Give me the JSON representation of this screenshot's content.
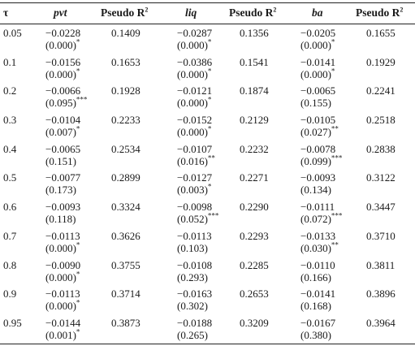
{
  "headers": {
    "tau": "τ",
    "pvt": "pvt",
    "pr1": "Pseudo R",
    "liq": "liq",
    "pr2": "Pseudo R",
    "ba": "ba",
    "pr3": "Pseudo R",
    "sup": "2"
  },
  "rows": [
    {
      "tau": "0.05",
      "pvt_coef": "−0.0228",
      "pvt_p": "(0.000)",
      "pvt_sig": "*",
      "pr1": "0.1409",
      "liq_coef": "−0.0287",
      "liq_p": "(0.000)",
      "liq_sig": "*",
      "pr2": "0.1356",
      "ba_coef": "−0.0205",
      "ba_p": "(0.000)",
      "ba_sig": "*",
      "pr3": "0.1655"
    },
    {
      "tau": "0.1",
      "pvt_coef": "−0.0156",
      "pvt_p": "(0.000)",
      "pvt_sig": "*",
      "pr1": "0.1653",
      "liq_coef": "−0.0386",
      "liq_p": "(0.000)",
      "liq_sig": "*",
      "pr2": "0.1541",
      "ba_coef": "−0.0141",
      "ba_p": "(0.000)",
      "ba_sig": "*",
      "pr3": "0.1929"
    },
    {
      "tau": "0.2",
      "pvt_coef": "−0.0066",
      "pvt_p": "(0.095)",
      "pvt_sig": "***",
      "pr1": "0.1928",
      "liq_coef": "−0.0121",
      "liq_p": "(0.000)",
      "liq_sig": "*",
      "pr2": "0.1874",
      "ba_coef": "−0.0065",
      "ba_p": "(0.155)",
      "ba_sig": "",
      "pr3": "0.2241"
    },
    {
      "tau": "0.3",
      "pvt_coef": "−0.0104",
      "pvt_p": "(0.007)",
      "pvt_sig": "*",
      "pr1": "0.2233",
      "liq_coef": "−0.0152",
      "liq_p": "(0.000)",
      "liq_sig": "*",
      "pr2": "0.2129",
      "ba_coef": "−0.0105",
      "ba_p": "(0.027)",
      "ba_sig": "**",
      "pr3": "0.2518"
    },
    {
      "tau": "0.4",
      "pvt_coef": "−0.0065",
      "pvt_p": "(0.151)",
      "pvt_sig": "",
      "pr1": "0.2534",
      "liq_coef": "−0.0107",
      "liq_p": "(0.016)",
      "liq_sig": "**",
      "pr2": "0.2232",
      "ba_coef": "−0.0078",
      "ba_p": "(0.099)",
      "ba_sig": "***",
      "pr3": "0.2838"
    },
    {
      "tau": "0.5",
      "pvt_coef": "−0.0077",
      "pvt_p": "(0.173)",
      "pvt_sig": "",
      "pr1": "0.2899",
      "liq_coef": "−0.0127",
      "liq_p": "(0.003)",
      "liq_sig": "*",
      "pr2": "0.2271",
      "ba_coef": "−0.0093",
      "ba_p": "(0.134)",
      "ba_sig": "",
      "pr3": "0.3122"
    },
    {
      "tau": "0.6",
      "pvt_coef": "−0.0093",
      "pvt_p": "(0.118)",
      "pvt_sig": "",
      "pr1": "0.3324",
      "liq_coef": "−0.0098",
      "liq_p": "(0.052)",
      "liq_sig": "***",
      "pr2": "0.2290",
      "ba_coef": "−0.0111",
      "ba_p": "(0.072)",
      "ba_sig": "***",
      "pr3": "0.3447"
    },
    {
      "tau": "0.7",
      "pvt_coef": "−0.0113",
      "pvt_p": "(0.000)",
      "pvt_sig": "*",
      "pr1": "0.3626",
      "liq_coef": "−0.0113",
      "liq_p": "(0.103)",
      "liq_sig": "",
      "pr2": "0.2293",
      "ba_coef": "−0.0133",
      "ba_p": "(0.030)",
      "ba_sig": "**",
      "pr3": "0.3710"
    },
    {
      "tau": "0.8",
      "pvt_coef": "−0.0090",
      "pvt_p": "(0.000)",
      "pvt_sig": "*",
      "pr1": "0.3755",
      "liq_coef": "−0.0108",
      "liq_p": "(0.293)",
      "liq_sig": "",
      "pr2": "0.2285",
      "ba_coef": "−0.0110",
      "ba_p": "(0.166)",
      "ba_sig": "",
      "pr3": "0.3811"
    },
    {
      "tau": "0.9",
      "pvt_coef": "−0.0113",
      "pvt_p": "(0.000)",
      "pvt_sig": "*",
      "pr1": "0.3714",
      "liq_coef": "−0.0163",
      "liq_p": "(0.302)",
      "liq_sig": "",
      "pr2": "0.2653",
      "ba_coef": "−0.0141",
      "ba_p": "(0.168)",
      "ba_sig": "",
      "pr3": "0.3896"
    },
    {
      "tau": "0.95",
      "pvt_coef": "−0.0144",
      "pvt_p": "(0.001)",
      "pvt_sig": "*",
      "pr1": "0.3873",
      "liq_coef": "−0.0188",
      "liq_p": "(0.265)",
      "liq_sig": "",
      "pr2": "0.3209",
      "ba_coef": "−0.0167",
      "ba_p": "(0.380)",
      "ba_sig": "",
      "pr3": "0.3964"
    }
  ]
}
